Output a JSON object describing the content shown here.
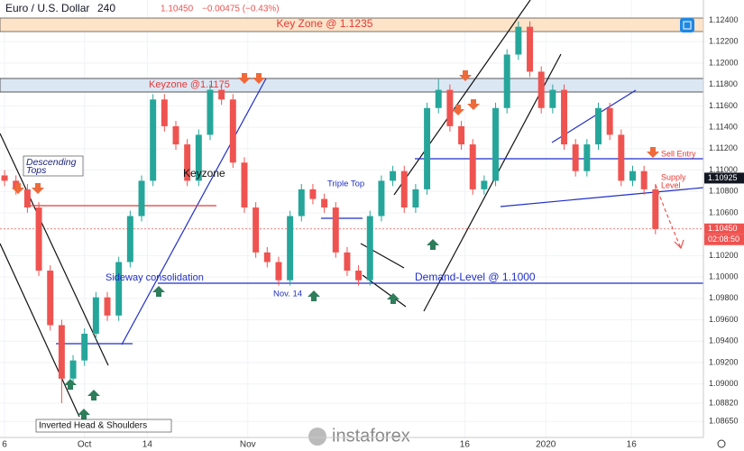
{
  "chart_data": {
    "type": "candlestick",
    "title": "Euro / U.S. Dollar",
    "interval": "240",
    "quote": "1.10450",
    "change": "−0.00475 (−0.43%)",
    "up_color": "#26a69a",
    "down_color": "#ef5350",
    "open": [
      1.1095,
      1.109,
      1.1082,
      1.1065,
      1.1006,
      1.0955,
      1.0905,
      1.0922,
      1.0947,
      1.0981,
      1.0964,
      1.1014,
      1.1057,
      1.109,
      1.1166,
      1.1141,
      1.1124,
      1.109,
      1.1133,
      1.1175,
      1.1166,
      1.1107,
      1.1065,
      1.1023,
      1.1014,
      1.0997,
      1.1057,
      1.1082,
      1.1073,
      1.1065,
      1.1023,
      1.1006,
      1.0997,
      1.1057,
      1.109,
      1.1099,
      1.1065,
      1.1082,
      1.1158,
      1.1175,
      1.1141,
      1.1124,
      1.1082,
      1.109,
      1.1158,
      1.1208,
      1.1234,
      1.1192,
      1.1158,
      1.1175,
      1.1124,
      1.1099,
      1.1124,
      1.1158,
      1.1133,
      1.109,
      1.1099,
      1.1082
    ],
    "high": [
      1.11,
      1.1095,
      1.1087,
      1.107,
      1.1011,
      1.096,
      1.0927,
      1.0952,
      1.0986,
      1.0986,
      1.1019,
      1.1062,
      1.1095,
      1.1171,
      1.1171,
      1.1146,
      1.1129,
      1.1138,
      1.118,
      1.118,
      1.1171,
      1.1112,
      1.107,
      1.1028,
      1.1019,
      1.1062,
      1.1087,
      1.1087,
      1.1078,
      1.107,
      1.1028,
      1.1011,
      1.1062,
      1.1095,
      1.1104,
      1.1104,
      1.1087,
      1.1163,
      1.1185,
      1.118,
      1.1146,
      1.1129,
      1.1095,
      1.1163,
      1.1213,
      1.1239,
      1.1239,
      1.1197,
      1.118,
      1.118,
      1.1129,
      1.1129,
      1.1163,
      1.1163,
      1.1138,
      1.1104,
      1.1104,
      1.1087
    ],
    "low": [
      1.1085,
      1.1077,
      1.106,
      1.1001,
      1.095,
      1.0882,
      1.09,
      1.0917,
      1.0942,
      1.0959,
      1.0959,
      1.1009,
      1.1052,
      1.1085,
      1.1136,
      1.1119,
      1.1085,
      1.1085,
      1.1128,
      1.1161,
      1.1102,
      1.106,
      1.1018,
      1.1009,
      1.0992,
      1.0992,
      1.1052,
      1.1068,
      1.106,
      1.1018,
      1.1001,
      1.0992,
      1.0992,
      1.1052,
      1.1085,
      1.106,
      1.106,
      1.1077,
      1.1153,
      1.1136,
      1.1119,
      1.1077,
      1.1077,
      1.1085,
      1.1153,
      1.1203,
      1.1187,
      1.1153,
      1.1153,
      1.1119,
      1.1094,
      1.1094,
      1.1119,
      1.1128,
      1.1085,
      1.1085,
      1.1077,
      1.104
    ],
    "close": [
      1.109,
      1.1082,
      1.1065,
      1.1006,
      1.0955,
      1.0905,
      1.0922,
      1.0947,
      1.0981,
      1.0964,
      1.1014,
      1.1057,
      1.109,
      1.1166,
      1.1141,
      1.1124,
      1.109,
      1.1133,
      1.1175,
      1.1166,
      1.1107,
      1.1065,
      1.1023,
      1.1014,
      1.0997,
      1.1057,
      1.1082,
      1.1073,
      1.1065,
      1.1023,
      1.1006,
      1.0997,
      1.1057,
      1.109,
      1.1099,
      1.1065,
      1.1082,
      1.1158,
      1.1175,
      1.1141,
      1.1124,
      1.1082,
      1.109,
      1.1158,
      1.1208,
      1.1234,
      1.1192,
      1.1158,
      1.1175,
      1.1124,
      1.1099,
      1.1124,
      1.1158,
      1.1133,
      1.109,
      1.1099,
      1.1082,
      1.1045
    ],
    "xlim": [
      -0.4,
      61.2
    ],
    "xticks": [
      {
        "value": 0,
        "label": "6"
      },
      {
        "value": 7,
        "label": "Oct"
      },
      {
        "value": 12.5,
        "label": "14"
      },
      {
        "value": 21.3,
        "label": "Nov"
      },
      {
        "value": 40.3,
        "label": "16"
      },
      {
        "value": 47.4,
        "label": "2020"
      },
      {
        "value": 54.9,
        "label": "16"
      }
    ],
    "ylim": [
      1.085,
      1.1259
    ],
    "yticks": [
      {
        "value": 1.124,
        "label": "1.12400"
      },
      {
        "value": 1.122,
        "label": "1.12200"
      },
      {
        "value": 1.12,
        "label": "1.12000"
      },
      {
        "value": 1.118,
        "label": "1.11800"
      },
      {
        "value": 1.116,
        "label": "1.11600"
      },
      {
        "value": 1.114,
        "label": "1.11400"
      },
      {
        "value": 1.112,
        "label": "1.11200"
      },
      {
        "value": 1.11,
        "label": "1.11000"
      },
      {
        "value": 1.108,
        "label": "1.10800"
      },
      {
        "value": 1.106,
        "label": "1.10600"
      },
      {
        "value": 1.102,
        "label": "1.10200"
      },
      {
        "value": 1.1,
        "label": "1.10000"
      },
      {
        "value": 1.098,
        "label": "1.09800"
      },
      {
        "value": 1.096,
        "label": "1.09600"
      },
      {
        "value": 1.094,
        "label": "1.09400"
      },
      {
        "value": 1.092,
        "label": "1.09200"
      },
      {
        "value": 1.09,
        "label": "1.09000"
      },
      {
        "value": 1.0882,
        "label": "1.08820"
      },
      {
        "value": 1.0865,
        "label": "1.08650"
      }
    ],
    "badges": [
      {
        "value": 1.10925,
        "label": "1.10925",
        "color": "#131722"
      },
      {
        "value": 1.1045,
        "label": "1.10450",
        "color": "#ef5350"
      }
    ],
    "countdown": "02:08:50",
    "annotations": {
      "key_zone_top": "Key Zone @ 1.1235",
      "key_zone_mid": "Keyzone @1.1175",
      "descending_tops": [
        "Descending",
        "Tops"
      ],
      "keyzone": "Keyzone",
      "triple_top": "Triple Top",
      "sideway": "Sideway consolidation",
      "nov14": "Nov. 14",
      "demand": "Demand-Level @ 1.1000",
      "sell_entry": "Sell Entry",
      "supply": [
        "Supply",
        "Level"
      ],
      "inverted_hs": "Inverted Head & Shoulders",
      "watermark": "instaforex"
    }
  }
}
